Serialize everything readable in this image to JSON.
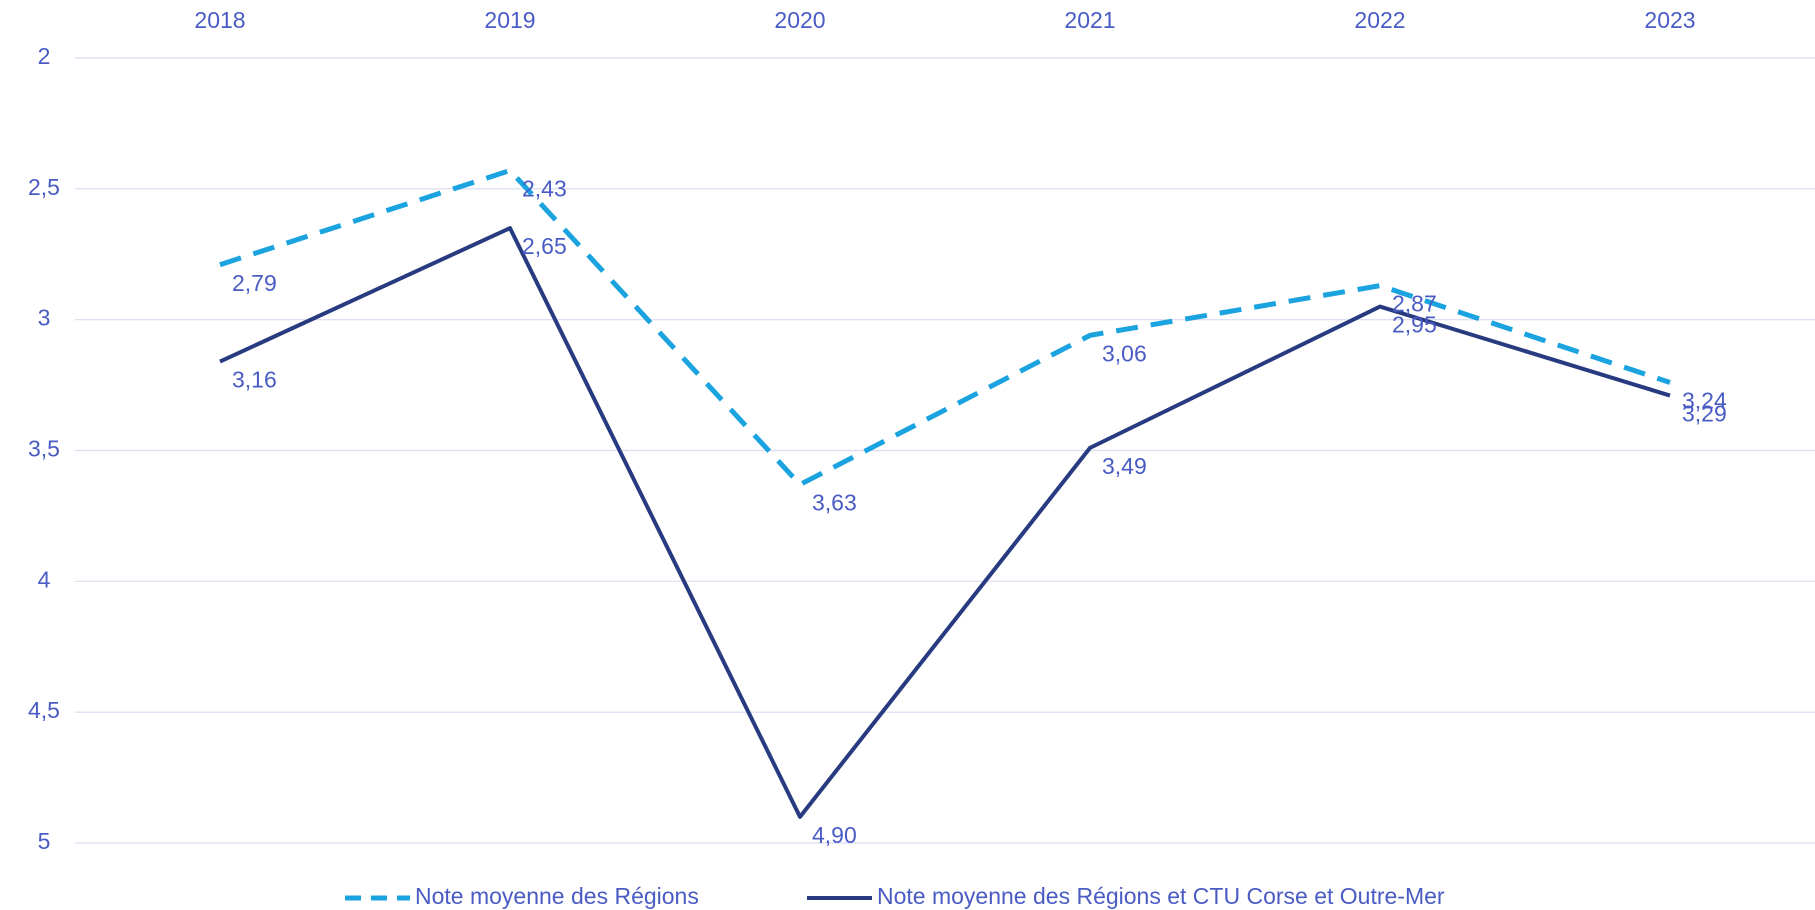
{
  "chart_data": {
    "type": "line",
    "categories": [
      "2018",
      "2019",
      "2020",
      "2021",
      "2022",
      "2023"
    ],
    "series": [
      {
        "name": "Note moyenne des Régions",
        "color": "#1aa3df",
        "dashed": true,
        "values": [
          2.79,
          2.43,
          3.63,
          3.06,
          2.87,
          3.24
        ],
        "value_labels": [
          "2,79",
          "2,43",
          "3,63",
          "3,06",
          "2,87",
          "3,24"
        ]
      },
      {
        "name": "Note moyenne des Régions et CTU Corse et Outre-Mer",
        "color": "#283a80",
        "dashed": false,
        "values": [
          3.16,
          2.65,
          4.9,
          3.49,
          2.95,
          3.29
        ],
        "value_labels": [
          "3,16",
          "2,65",
          "4,90",
          "3,49",
          "2,95",
          "3,29"
        ]
      }
    ],
    "ylim": [
      2,
      5
    ],
    "y_reversed": true,
    "yticks": [
      2,
      {
        "value": 2.5,
        "label": "2,5"
      },
      3,
      {
        "value": 3.5,
        "label": "3,5"
      },
      4,
      {
        "value": 4.5,
        "label": "4,5"
      },
      5
    ],
    "grid": true,
    "legend": "bottom"
  }
}
